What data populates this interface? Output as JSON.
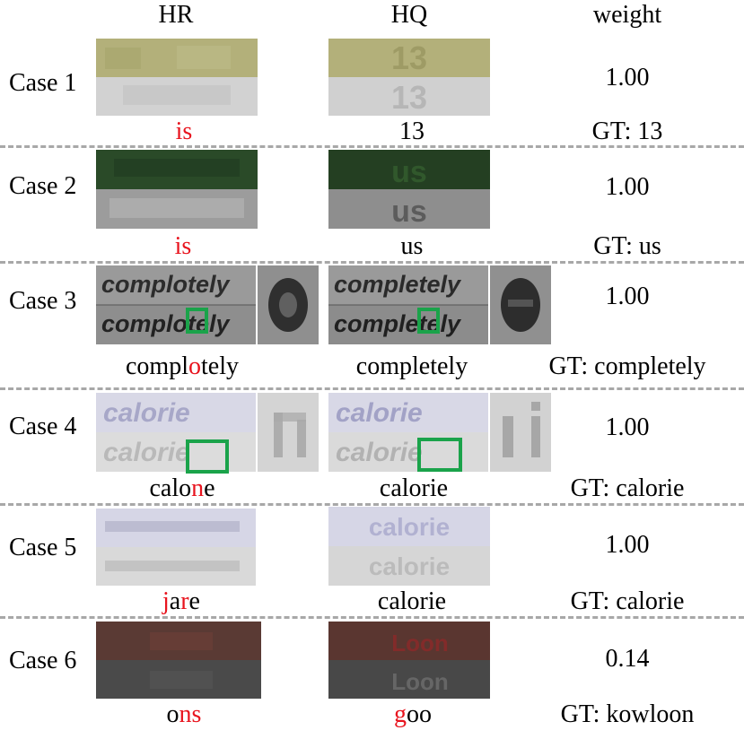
{
  "headers": {
    "hr": "HR",
    "hq": "HQ",
    "weight": "weight"
  },
  "cases": [
    {
      "label": "Case 1",
      "weight": "1.00",
      "hr_pred": [
        {
          "t": "is",
          "err": true
        }
      ],
      "hq_pred": [
        {
          "t": "13",
          "err": false
        }
      ],
      "gt": "GT: 13",
      "hr_image_text": "",
      "hq_image_text": "13",
      "top_color": "#b3b07a",
      "bottom_color": "#d2d2d2"
    },
    {
      "label": "Case 2",
      "weight": "1.00",
      "hr_pred": [
        {
          "t": "is",
          "err": true
        }
      ],
      "hq_pred": [
        {
          "t": "us",
          "err": false
        }
      ],
      "gt": "GT: us",
      "hr_image_text": "",
      "hq_image_text": "us",
      "top_color": "#2a4a28",
      "bottom_color": "#9c9c9c"
    },
    {
      "label": "Case 3",
      "weight": "1.00",
      "hr_pred": [
        {
          "t": "compl",
          "err": false
        },
        {
          "t": "o",
          "err": true
        },
        {
          "t": "tely",
          "err": false
        }
      ],
      "hq_pred": [
        {
          "t": "completely",
          "err": false
        }
      ],
      "gt": "GT: completely",
      "hr_image_text": "complotely",
      "hq_image_text": "completely",
      "top_color": "#9a9a9a",
      "bottom_color": "#8e8e8e"
    },
    {
      "label": "Case 4",
      "weight": "1.00",
      "hr_pred": [
        {
          "t": "calo",
          "err": false
        },
        {
          "t": "n",
          "err": true
        },
        {
          "t": "e",
          "err": false
        }
      ],
      "hq_pred": [
        {
          "t": "calorie",
          "err": false
        }
      ],
      "gt": "GT: calorie",
      "hr_image_text": "calorie",
      "hq_image_text": "calorie",
      "top_color": "#d8d8e6",
      "bottom_color": "#dcdcdc"
    },
    {
      "label": "Case 5",
      "weight": "1.00",
      "hr_pred": [
        {
          "t": "j",
          "err": true
        },
        {
          "t": "a",
          "err": false
        },
        {
          "t": "r",
          "err": true
        },
        {
          "t": "e",
          "err": false
        }
      ],
      "hq_pred": [
        {
          "t": "calorie",
          "err": false
        }
      ],
      "gt": "GT: calorie",
      "hr_image_text": "",
      "hq_image_text": "calorie",
      "top_color": "#d6d6e6",
      "bottom_color": "#d9d9d9"
    },
    {
      "label": "Case 6",
      "weight": "0.14",
      "hr_pred": [
        {
          "t": "o",
          "err": false
        },
        {
          "t": "ns",
          "err": true
        }
      ],
      "hq_pred": [
        {
          "t": "g",
          "err": true
        },
        {
          "t": "oo",
          "err": false
        }
      ],
      "gt": "GT: kowloon",
      "hr_image_text": "",
      "hq_image_text": "Loon",
      "top_color": "#5a3a34",
      "bottom_color": "#4a4a4a"
    }
  ]
}
